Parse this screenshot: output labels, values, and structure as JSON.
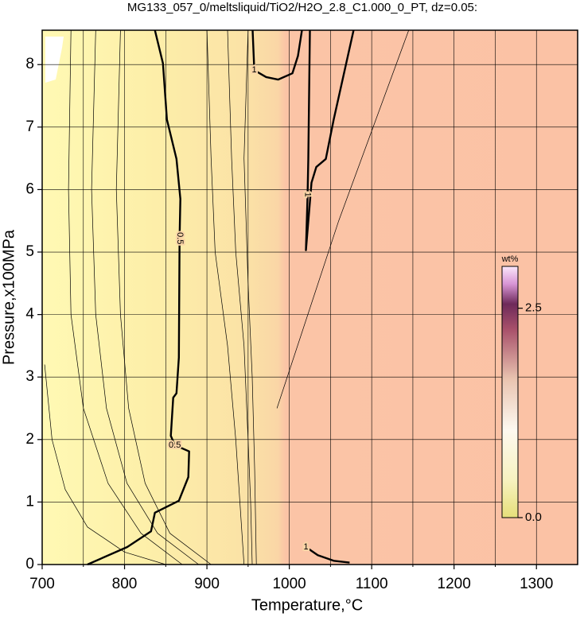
{
  "chart_data": {
    "type": "contour",
    "title": "MG133_057_0/meltsliquid/TiO2/H2O_2.8_C1.000_0_PT, dz=0.05:",
    "xlabel": "Temperature,°C",
    "ylabel": "Pressure,x100MPa",
    "xlim": [
      700,
      1350
    ],
    "ylim": [
      0,
      8.55
    ],
    "xticks": [
      700,
      800,
      900,
      1000,
      1100,
      1200,
      1300
    ],
    "xminorticks": [
      750,
      850,
      950,
      1050,
      1150,
      1250
    ],
    "yticks": [
      0,
      1,
      2,
      3,
      4,
      5,
      6,
      7,
      8
    ],
    "grid": true,
    "colorbar": {
      "label": "wt%",
      "clim": [
        0,
        3.0
      ],
      "ticks": [
        {
          "value": 0,
          "label": "0.0"
        },
        {
          "value": 2.5,
          "label": "2.5"
        }
      ]
    },
    "contours": [
      {
        "level": 0.5,
        "x": [
          755.0,
          803.2,
          832.1,
          836.9,
          865.9,
          877.4,
          878.4,
          861.0,
          856.2,
          859.1,
          863.0,
          865.9,
          866.8,
          867.8,
          863.0,
          851.4,
          846.6,
          836.9
        ],
        "y": [
          0,
          0.28,
          0.53,
          0.83,
          1.02,
          1.4,
          1.81,
          1.91,
          2.06,
          2.67,
          2.74,
          3.31,
          5.22,
          5.85,
          6.49,
          7.12,
          8.02,
          8.55
        ]
      },
      {
        "level": 1,
        "x": [
          955.5,
          957.5,
          971.9,
          986.4,
          1003.8,
          1010.5,
          1015.3
        ],
        "y": [
          8.55,
          7.91,
          7.8,
          7.76,
          7.86,
          8.14,
          8.55
        ]
      },
      {
        "level": 1,
        "x": [
          1025.0,
          1023.1,
          1022.2,
          1020.2,
          1026.9,
          1032.7,
          1044.3,
          1053.9,
          1078.0
        ],
        "y": [
          8.55,
          6.49,
          5.92,
          5.03,
          6.11,
          6.36,
          6.49,
          7.12,
          8.55
        ]
      },
      {
        "level": 1,
        "x": [
          1020.2,
          1034.6,
          1053.9,
          1073.2
        ],
        "y": [
          0.28,
          0.15,
          0.06,
          0.03
        ]
      },
      {
        "x": [
          703,
          712,
          728,
          755,
          800,
          850
        ],
        "y": [
          3.2,
          2.0,
          1.2,
          0.6,
          0.2,
          0
        ]
      },
      {
        "x": [
          735,
          732,
          735,
          750,
          780,
          820,
          870
        ],
        "y": [
          8.55,
          6,
          4,
          2.5,
          1.3,
          0.5,
          0
        ]
      },
      {
        "x": [
          765,
          760,
          765,
          778,
          803,
          840,
          890
        ],
        "y": [
          8.55,
          6,
          4,
          2.5,
          1.3,
          0.5,
          0
        ]
      },
      {
        "x": [
          795,
          790,
          795,
          805,
          825,
          855,
          905
        ],
        "y": [
          8.55,
          6,
          4,
          2.5,
          1.3,
          0.5,
          0
        ]
      },
      {
        "x": [
          900,
          905,
          910,
          925,
          935,
          940,
          945
        ],
        "y": [
          8.55,
          6.5,
          5,
          3.5,
          2,
          1,
          0
        ]
      },
      {
        "x": [
          925,
          930,
          935,
          945,
          950,
          953,
          955
        ],
        "y": [
          8.55,
          6.5,
          5,
          3.5,
          2,
          1,
          0
        ]
      },
      {
        "x": [
          950,
          945,
          950,
          955,
          958,
          960
        ],
        "y": [
          8.55,
          6.5,
          4.5,
          3,
          1.5,
          0
        ]
      },
      {
        "x": [
          985,
          1060,
          1145
        ],
        "y": [
          2.5,
          5.5,
          8.55
        ]
      }
    ]
  }
}
